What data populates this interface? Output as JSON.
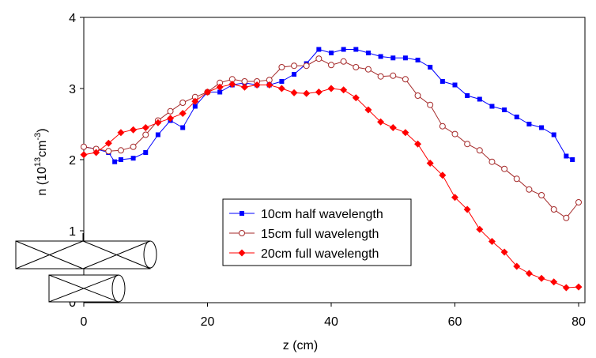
{
  "chart_data": {
    "type": "line",
    "xlabel": "z (cm)",
    "ylabel": {
      "text": "n (10",
      "exp": "13",
      "unit": "cm",
      "unit_exp": "-3",
      "close": ")"
    },
    "xlim": [
      0,
      80
    ],
    "xticks": [
      0,
      20,
      40,
      60,
      80
    ],
    "ylim": [
      0,
      4
    ],
    "yticks": [
      0,
      1,
      2,
      3,
      4
    ],
    "legend": "center",
    "series": [
      {
        "name": "10cm half wavelength",
        "color": "#0000ff",
        "marker": "square",
        "x": [
          0,
          2,
          4,
          5,
          6,
          8,
          10,
          12,
          14,
          16,
          18,
          20,
          22,
          24,
          26,
          28,
          30,
          32,
          34,
          36,
          38,
          40,
          42,
          44,
          46,
          48,
          50,
          52,
          54,
          56,
          58,
          60,
          62,
          64,
          66,
          68,
          70,
          72,
          74,
          76,
          78,
          79
        ],
        "values": [
          2.18,
          2.15,
          2.1,
          1.97,
          2.0,
          2.02,
          2.1,
          2.35,
          2.55,
          2.45,
          2.75,
          2.95,
          2.95,
          3.05,
          3.08,
          3.05,
          3.05,
          3.1,
          3.2,
          3.35,
          3.55,
          3.5,
          3.55,
          3.55,
          3.5,
          3.45,
          3.43,
          3.43,
          3.4,
          3.3,
          3.1,
          3.05,
          2.9,
          2.85,
          2.75,
          2.7,
          2.6,
          2.5,
          2.45,
          2.35,
          2.05,
          2.0
        ]
      },
      {
        "name": "15cm full wavelength",
        "color": "#a52a2a",
        "marker": "circle",
        "x": [
          0,
          2,
          4,
          6,
          8,
          10,
          12,
          14,
          16,
          18,
          20,
          22,
          24,
          26,
          28,
          30,
          32,
          34,
          36,
          38,
          40,
          42,
          44,
          46,
          48,
          50,
          52,
          54,
          56,
          58,
          60,
          62,
          64,
          66,
          68,
          70,
          72,
          74,
          76,
          78,
          80
        ],
        "values": [
          2.18,
          2.15,
          2.12,
          2.13,
          2.18,
          2.35,
          2.55,
          2.68,
          2.8,
          2.88,
          2.95,
          3.08,
          3.13,
          3.1,
          3.1,
          3.12,
          3.3,
          3.32,
          3.32,
          3.42,
          3.33,
          3.38,
          3.3,
          3.27,
          3.17,
          3.18,
          3.13,
          2.9,
          2.77,
          2.47,
          2.36,
          2.22,
          2.13,
          1.97,
          1.87,
          1.73,
          1.58,
          1.5,
          1.3,
          1.18,
          1.4
        ]
      },
      {
        "name": "20cm full wavelength",
        "color": "#ff0000",
        "marker": "diamond",
        "x": [
          0,
          2,
          4,
          6,
          8,
          10,
          12,
          14,
          16,
          18,
          20,
          22,
          24,
          26,
          28,
          30,
          32,
          34,
          36,
          38,
          40,
          42,
          44,
          46,
          48,
          50,
          52,
          54,
          56,
          58,
          60,
          62,
          64,
          66,
          68,
          70,
          72,
          74,
          76,
          78,
          80
        ],
        "values": [
          2.07,
          2.1,
          2.23,
          2.38,
          2.42,
          2.45,
          2.52,
          2.58,
          2.65,
          2.82,
          2.95,
          3.02,
          3.06,
          3.02,
          3.05,
          3.05,
          3.0,
          2.94,
          2.93,
          2.95,
          3.0,
          2.98,
          2.87,
          2.7,
          2.53,
          2.45,
          2.38,
          2.22,
          1.95,
          1.78,
          1.47,
          1.3,
          1.02,
          0.85,
          0.7,
          0.5,
          0.4,
          0.33,
          0.28,
          0.2,
          0.21
        ]
      }
    ]
  }
}
